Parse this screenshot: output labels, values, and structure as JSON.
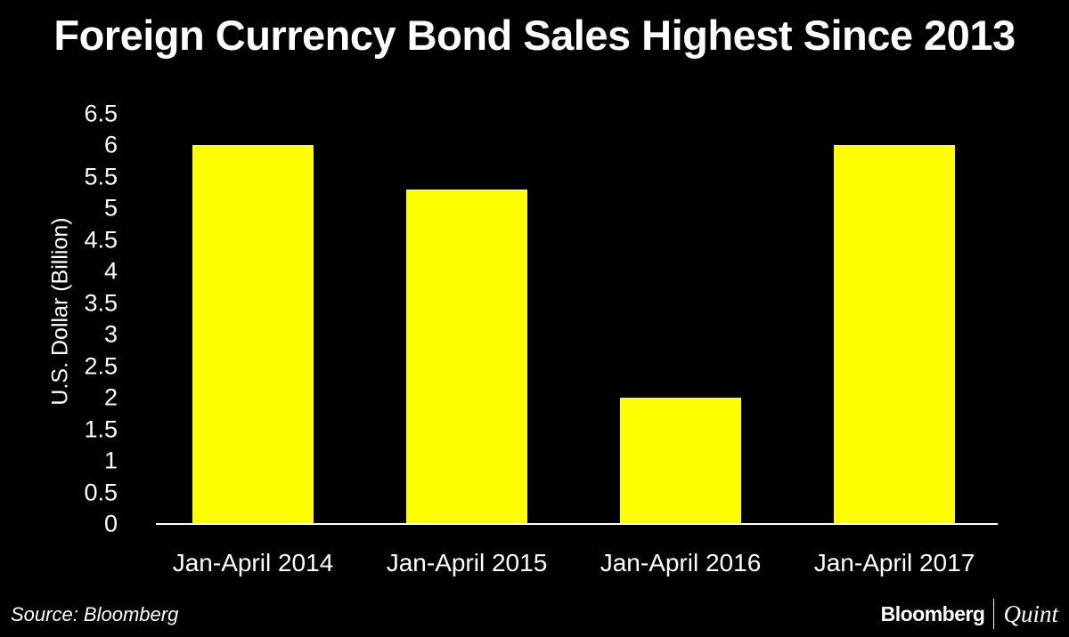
{
  "title": "Foreign Currency Bond Sales Highest Since 2013",
  "footer": {
    "source": "Source: Bloomberg",
    "brand_primary": "Bloomberg",
    "brand_secondary": "Quint"
  },
  "colors": {
    "background": "#000000",
    "bar": "#ffff00",
    "text": "#ffffff"
  },
  "chart_data": {
    "type": "bar",
    "title": "Foreign Currency Bond Sales Highest Since 2013",
    "xlabel": "",
    "ylabel": "U.S. Dollar (Billion)",
    "categories": [
      "Jan-April 2014",
      "Jan-April 2015",
      "Jan-April 2016",
      "Jan-April 2017"
    ],
    "values": [
      6.0,
      5.3,
      2.0,
      6.0
    ],
    "ylim": [
      0,
      6.5
    ],
    "yticks": [
      "0",
      "0.5",
      "1",
      "1.5",
      "2",
      "2.5",
      "3",
      "3.5",
      "4",
      "4.5",
      "5",
      "5.5",
      "6",
      "6.5"
    ],
    "grid": false,
    "legend": null
  }
}
